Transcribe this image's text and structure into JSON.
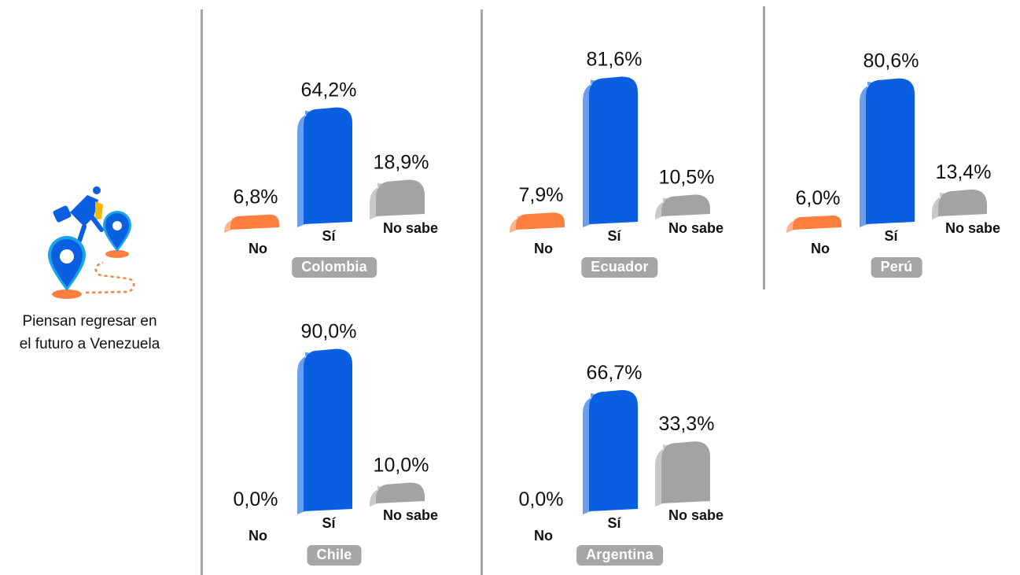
{
  "caption_lines": [
    "Piensan regresar en",
    "el futuro a Venezuela"
  ],
  "colors": {
    "no": "#ff7f3f",
    "si": "#0a5fe0",
    "nosabe": "#a3a3a3",
    "label_bg": "#a6a6a6",
    "divider": "#a6a6a6"
  },
  "icon": "travel-return-location-icon",
  "chart_data": [
    {
      "type": "bar",
      "country": "Colombia",
      "categories": [
        "No",
        "Sí",
        "No sabe"
      ],
      "values": [
        6.8,
        64.2,
        18.9
      ],
      "labels": [
        "6,8%",
        "64,2%",
        "18,9%"
      ],
      "ylim": [
        0,
        100
      ],
      "grid": false
    },
    {
      "type": "bar",
      "country": "Ecuador",
      "categories": [
        "No",
        "Sí",
        "No sabe"
      ],
      "values": [
        7.9,
        81.6,
        10.5
      ],
      "labels": [
        "7,9%",
        "81,6%",
        "10,5%"
      ],
      "ylim": [
        0,
        100
      ],
      "grid": false
    },
    {
      "type": "bar",
      "country": "Perú",
      "categories": [
        "No",
        "Sí",
        "No sabe"
      ],
      "values": [
        6.0,
        80.6,
        13.4
      ],
      "labels": [
        "6,0%",
        "80,6%",
        "13,4%"
      ],
      "ylim": [
        0,
        100
      ],
      "grid": false
    },
    {
      "type": "bar",
      "country": "Chile",
      "categories": [
        "No",
        "Sí",
        "No sabe"
      ],
      "values": [
        0.0,
        90.0,
        10.0
      ],
      "labels": [
        "0,0%",
        "90,0%",
        "10,0%"
      ],
      "ylim": [
        0,
        100
      ],
      "grid": false
    },
    {
      "type": "bar",
      "country": "Argentina",
      "categories": [
        "No",
        "Sí",
        "No sabe"
      ],
      "values": [
        0.0,
        66.7,
        33.3
      ],
      "labels": [
        "0,0%",
        "66,7%",
        "33,3%"
      ],
      "ylim": [
        0,
        100
      ],
      "grid": false
    }
  ]
}
